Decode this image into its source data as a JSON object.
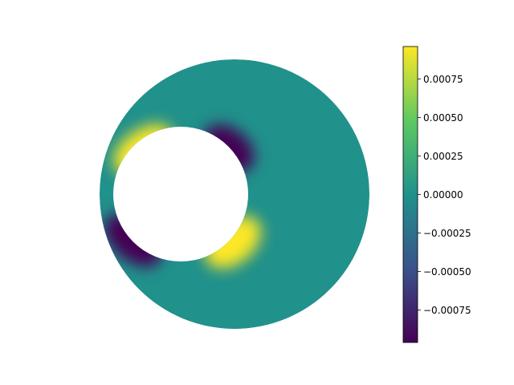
{
  "chart_data": {
    "type": "heatmap",
    "subtype": "field on annulus (eccentric hole)",
    "title": "",
    "xlabel": "",
    "ylabel": "",
    "colormap": "viridis",
    "colormap_stops": [
      "#440154",
      "#3b528b",
      "#21918c",
      "#5ec962",
      "#fde725"
    ],
    "value_range": [
      -0.00096,
      0.00096
    ],
    "colorbar": {
      "ticks": [
        0.00075,
        0.0005,
        0.00025,
        0.0,
        -0.00025,
        -0.0005,
        -0.00075
      ],
      "tick_labels": [
        "0.00075",
        "0.00050",
        "0.00025",
        "0.00000",
        "−0.00025",
        "−0.00050",
        "−0.00075"
      ]
    },
    "field_features": [
      {
        "name": "upper-left positive lobe",
        "value": 0.00096
      },
      {
        "name": "lower-right positive lobe",
        "value": 0.00096
      },
      {
        "name": "upper-right negative lobe",
        "value": -0.00096
      },
      {
        "name": "lower-left negative lobe",
        "value": -0.00096
      },
      {
        "name": "background far field",
        "value": 0.0
      }
    ]
  }
}
